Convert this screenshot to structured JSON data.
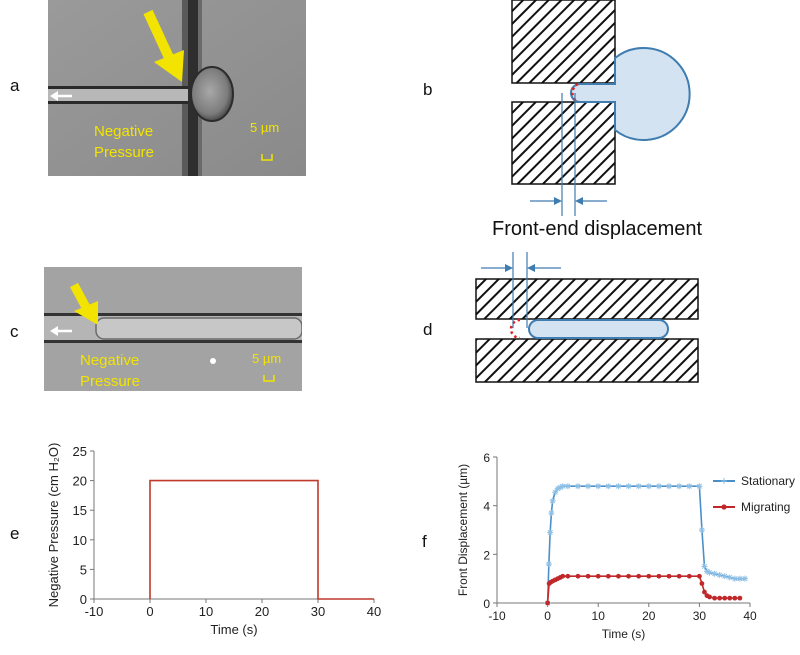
{
  "panels": {
    "a": {
      "letter": "a",
      "label_line1": "Negative",
      "label_line2": "Pressure",
      "scale_label": "5 µm"
    },
    "b": {
      "letter": "b",
      "caption": "Front-end displacement"
    },
    "c": {
      "letter": "c",
      "label_line1": "Negative",
      "label_line2": "Pressure",
      "scale_label": "5 µm"
    },
    "d": {
      "letter": "d"
    },
    "e": {
      "letter": "e"
    },
    "f": {
      "letter": "f"
    }
  },
  "colors": {
    "annotation_yellow": "#f2e400",
    "cell_fill": "#d4e3f1",
    "cell_stroke": "#3f7cb0",
    "pressure_line": "#c0392b",
    "stationary": "#4a8fc7",
    "migrating": "#c0282a"
  },
  "chart_data": [
    {
      "type": "line",
      "panel": "e",
      "xlabel": "Time (s)",
      "ylabel": "Negative Pressure (cm H₂O)",
      "xlim": [
        -10,
        40
      ],
      "ylim": [
        0,
        25
      ],
      "xticks": [
        -10,
        0,
        10,
        20,
        30,
        40
      ],
      "yticks": [
        0,
        5,
        10,
        15,
        20,
        25
      ],
      "grid": false,
      "series": [
        {
          "x": [
            0,
            0,
            30,
            30,
            40
          ],
          "y": [
            0,
            20,
            20,
            0,
            0
          ]
        }
      ]
    },
    {
      "type": "line",
      "panel": "f",
      "xlabel": "Time (s)",
      "ylabel": "Front Displacement (µm)",
      "xlim": [
        -10,
        40
      ],
      "ylim": [
        0,
        6
      ],
      "xticks": [
        -10,
        0,
        10,
        20,
        30,
        40
      ],
      "yticks": [
        0,
        2,
        4,
        6
      ],
      "grid": false,
      "legend_position": "right",
      "series": [
        {
          "name": "Stationary",
          "x": [
            0,
            0.25,
            0.5,
            0.75,
            1,
            1.5,
            2,
            2.5,
            3,
            4,
            6,
            8,
            10,
            12,
            14,
            16,
            18,
            20,
            22,
            24,
            26,
            28,
            30,
            30.5,
            31,
            31.5,
            32,
            33,
            34,
            35,
            36,
            37,
            38,
            39
          ],
          "y": [
            0,
            1.6,
            2.9,
            3.7,
            4.2,
            4.55,
            4.7,
            4.75,
            4.8,
            4.8,
            4.8,
            4.8,
            4.8,
            4.8,
            4.8,
            4.8,
            4.8,
            4.8,
            4.8,
            4.8,
            4.8,
            4.8,
            4.8,
            3.0,
            1.5,
            1.3,
            1.25,
            1.2,
            1.15,
            1.1,
            1.05,
            1.0,
            1.0,
            1.0
          ]
        },
        {
          "name": "Migrating",
          "x": [
            0,
            0.3,
            0.6,
            1,
            1.5,
            2,
            2.5,
            3,
            4,
            6,
            8,
            10,
            12,
            14,
            16,
            18,
            20,
            22,
            24,
            26,
            28,
            30,
            30.5,
            31,
            31.5,
            32,
            33,
            34,
            35,
            36,
            37,
            38
          ],
          "y": [
            0,
            0.8,
            0.85,
            0.9,
            0.95,
            1.0,
            1.05,
            1.1,
            1.1,
            1.1,
            1.1,
            1.1,
            1.1,
            1.1,
            1.1,
            1.1,
            1.1,
            1.1,
            1.1,
            1.1,
            1.1,
            1.1,
            0.8,
            0.45,
            0.3,
            0.25,
            0.2,
            0.2,
            0.2,
            0.2,
            0.2,
            0.2
          ]
        }
      ]
    }
  ]
}
